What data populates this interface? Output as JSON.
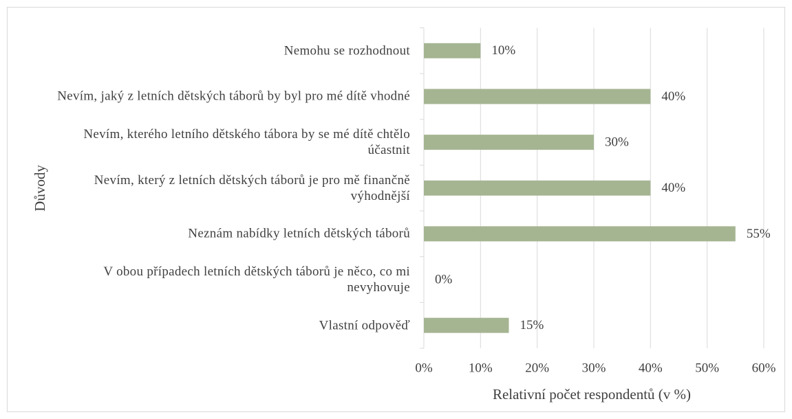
{
  "chart_data": {
    "type": "bar",
    "orientation": "horizontal",
    "xlabel": "Relativní počet respondentů (v %)",
    "ylabel": "Důvody",
    "categories": [
      "Nemohu se rozhodnout",
      "Nevím, jaký z letních dětských táborů by byl pro mé dítě vhodné",
      "Nevím, kterého letního dětského tábora by se mé dítě chtělo účastnit",
      "Nevím, který z letních dětských táborů je pro mě finančně výhodnější",
      "Neznám nabídky letních dětských táborů",
      "V obou případech letních dětských táborů je něco, co mi nevyhovuje",
      "Vlastní odpověď"
    ],
    "values": [
      10,
      40,
      30,
      40,
      55,
      0,
      15
    ],
    "value_labels": [
      "10%",
      "40%",
      "30%",
      "40%",
      "55%",
      "0%",
      "15%"
    ],
    "color": "#a5b592",
    "xlim": [
      0,
      60
    ],
    "xticks": [
      {
        "value": 0,
        "label": "0%"
      },
      {
        "value": 10,
        "label": "10%"
      },
      {
        "value": 20,
        "label": "20%"
      },
      {
        "value": 30,
        "label": "30%"
      },
      {
        "value": 40,
        "label": "40%"
      },
      {
        "value": 50,
        "label": "50%"
      },
      {
        "value": 60,
        "label": "60%"
      }
    ],
    "grid": true
  }
}
